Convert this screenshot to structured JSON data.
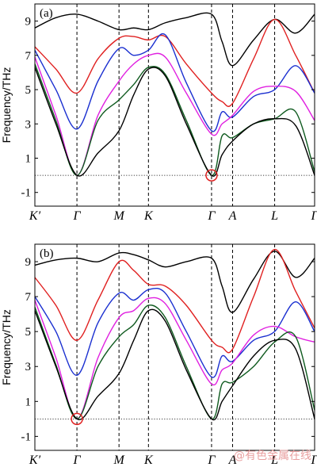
{
  "watermark": "@有色金属在线",
  "chart_data": [
    {
      "type": "line",
      "panel_label": "(a)",
      "ylabel": "Frequency/THz",
      "ylim": [
        -1.8,
        10
      ],
      "yticks": [
        -1,
        1,
        3,
        5,
        7,
        9
      ],
      "k_points": [
        {
          "label": "K′",
          "pos": 0
        },
        {
          "label": "Γ",
          "pos": 1
        },
        {
          "label": "M",
          "pos": 2
        },
        {
          "label": "K",
          "pos": 2.7
        },
        {
          "label": "Γ",
          "pos": 4.2
        },
        {
          "label": "A",
          "pos": 4.7
        },
        {
          "label": "L",
          "pos": 5.7
        },
        {
          "label": "Γ",
          "pos": 6.65
        }
      ],
      "zero_line": true,
      "highlight": {
        "k_index": 4,
        "frequency": 0,
        "color": "#e02020"
      },
      "series": [
        {
          "color": "#000000",
          "points": [
            [
              0,
              8.6
            ],
            [
              0.5,
              9.2
            ],
            [
              1,
              9.4
            ],
            [
              1.5,
              9.0
            ],
            [
              2,
              8.5
            ],
            [
              2.35,
              8.6
            ],
            [
              2.7,
              8.5
            ],
            [
              3.1,
              8.9
            ],
            [
              3.6,
              9.2
            ],
            [
              4.2,
              9.4
            ],
            [
              4.45,
              7.8
            ],
            [
              4.7,
              6.4
            ],
            [
              5.2,
              7.9
            ],
            [
              5.7,
              9.1
            ],
            [
              6.2,
              8.3
            ],
            [
              6.65,
              9.4
            ]
          ]
        },
        {
          "color": "#e02020",
          "points": [
            [
              0,
              7.5
            ],
            [
              0.5,
              6.2
            ],
            [
              1,
              4.8
            ],
            [
              1.5,
              6.8
            ],
            [
              2,
              8.0
            ],
            [
              2.35,
              8.1
            ],
            [
              2.7,
              7.9
            ],
            [
              3.1,
              8.1
            ],
            [
              3.6,
              6.5
            ],
            [
              4.2,
              4.8
            ],
            [
              4.45,
              4.3
            ],
            [
              4.7,
              4.2
            ],
            [
              5.2,
              6.8
            ],
            [
              5.7,
              9.1
            ],
            [
              6.2,
              7.0
            ],
            [
              6.65,
              4.8
            ]
          ]
        },
        {
          "color": "#1a2fd0",
          "points": [
            [
              0,
              7.3
            ],
            [
              0.5,
              5.0
            ],
            [
              1,
              2.7
            ],
            [
              1.5,
              5.5
            ],
            [
              2,
              7.4
            ],
            [
              2.35,
              7.0
            ],
            [
              2.7,
              7.3
            ],
            [
              3.1,
              8.2
            ],
            [
              3.6,
              5.4
            ],
            [
              4.2,
              2.6
            ],
            [
              4.45,
              3.7
            ],
            [
              4.7,
              3.4
            ],
            [
              5.2,
              4.6
            ],
            [
              5.7,
              5.0
            ],
            [
              6.2,
              6.4
            ],
            [
              6.65,
              4.8
            ]
          ]
        },
        {
          "color": "#e020e0",
          "points": [
            [
              0,
              6.9
            ],
            [
              0.5,
              3.5
            ],
            [
              1,
              0
            ],
            [
              1.5,
              3.5
            ],
            [
              2,
              5.5
            ],
            [
              2.35,
              6.5
            ],
            [
              2.7,
              7.0
            ],
            [
              3.1,
              6.9
            ],
            [
              3.6,
              4.8
            ],
            [
              4.2,
              2.4
            ],
            [
              4.45,
              3.0
            ],
            [
              4.7,
              3.5
            ],
            [
              5.2,
              4.9
            ],
            [
              5.7,
              5.2
            ],
            [
              6.2,
              4.9
            ],
            [
              6.65,
              3.2
            ]
          ]
        },
        {
          "color": "#0e5a1e",
          "points": [
            [
              0,
              6.5
            ],
            [
              0.5,
              3.2
            ],
            [
              1,
              0
            ],
            [
              1.5,
              3.2
            ],
            [
              2,
              4.4
            ],
            [
              2.35,
              5.3
            ],
            [
              2.7,
              6.3
            ],
            [
              3.1,
              5.9
            ],
            [
              3.6,
              3.2
            ],
            [
              4.2,
              0
            ],
            [
              4.45,
              2.3
            ],
            [
              4.7,
              2.2
            ],
            [
              5.2,
              3.0
            ],
            [
              5.7,
              3.3
            ],
            [
              6.2,
              3.7
            ],
            [
              6.65,
              0.2
            ]
          ]
        },
        {
          "color": "#000000",
          "points": [
            [
              0,
              6.3
            ],
            [
              0.5,
              3.0
            ],
            [
              1,
              0
            ],
            [
              1.5,
              1.3
            ],
            [
              2,
              2.6
            ],
            [
              2.35,
              4.7
            ],
            [
              2.7,
              6.2
            ],
            [
              3.1,
              5.8
            ],
            [
              3.6,
              3.0
            ],
            [
              4.2,
              0
            ],
            [
              4.45,
              1.2
            ],
            [
              4.7,
              2.0
            ],
            [
              5.2,
              3.0
            ],
            [
              5.7,
              3.3
            ],
            [
              6.2,
              2.9
            ],
            [
              6.65,
              0
            ]
          ]
        }
      ]
    },
    {
      "type": "line",
      "panel_label": "(b)",
      "ylabel": "Frequency/THz",
      "ylim": [
        -1.8,
        10
      ],
      "yticks": [
        -1,
        1,
        3,
        5,
        7,
        9
      ],
      "k_points": [
        {
          "label": "K′",
          "pos": 0
        },
        {
          "label": "Γ",
          "pos": 1
        },
        {
          "label": "M",
          "pos": 2
        },
        {
          "label": "K",
          "pos": 2.7
        },
        {
          "label": "Γ",
          "pos": 4.2
        },
        {
          "label": "A",
          "pos": 4.7
        },
        {
          "label": "L",
          "pos": 5.7
        },
        {
          "label": "Γ",
          "pos": 6.65
        }
      ],
      "zero_line": true,
      "highlight": {
        "k_index": 1,
        "frequency": 0,
        "color": "#e02020"
      },
      "series": [
        {
          "color": "#000000",
          "points": [
            [
              0,
              8.8
            ],
            [
              0.5,
              9.1
            ],
            [
              1,
              9.2
            ],
            [
              1.5,
              9.0
            ],
            [
              2,
              9.5
            ],
            [
              2.35,
              9.4
            ],
            [
              2.7,
              9.1
            ],
            [
              3.1,
              8.7
            ],
            [
              3.6,
              9.0
            ],
            [
              4.2,
              9.2
            ],
            [
              4.45,
              7.6
            ],
            [
              4.7,
              6.1
            ],
            [
              5.2,
              8.0
            ],
            [
              5.7,
              9.6
            ],
            [
              6.2,
              8.1
            ],
            [
              6.65,
              9.2
            ]
          ]
        },
        {
          "color": "#e02020",
          "points": [
            [
              0,
              8.1
            ],
            [
              0.5,
              6.5
            ],
            [
              1,
              4.5
            ],
            [
              1.5,
              6.8
            ],
            [
              2,
              9.0
            ],
            [
              2.35,
              8.5
            ],
            [
              2.7,
              7.7
            ],
            [
              3.1,
              7.6
            ],
            [
              3.6,
              6.5
            ],
            [
              4.2,
              4.5
            ],
            [
              4.45,
              4.1
            ],
            [
              4.7,
              4.0
            ],
            [
              5.2,
              7.0
            ],
            [
              5.7,
              9.7
            ],
            [
              6.2,
              7.3
            ],
            [
              6.65,
              5.2
            ]
          ]
        },
        {
          "color": "#1a2fd0",
          "points": [
            [
              0,
              7.0
            ],
            [
              0.5,
              5.0
            ],
            [
              1,
              2.5
            ],
            [
              1.5,
              5.5
            ],
            [
              2,
              7.2
            ],
            [
              2.35,
              6.8
            ],
            [
              2.7,
              7.4
            ],
            [
              3.1,
              7.2
            ],
            [
              3.6,
              5.0
            ],
            [
              4.2,
              2.4
            ],
            [
              4.45,
              3.6
            ],
            [
              4.7,
              3.3
            ],
            [
              5.2,
              4.5
            ],
            [
              5.7,
              5.0
            ],
            [
              6.2,
              6.7
            ],
            [
              6.65,
              5.0
            ]
          ]
        },
        {
          "color": "#e020e0",
          "points": [
            [
              0,
              6.8
            ],
            [
              0.5,
              3.5
            ],
            [
              1,
              0
            ],
            [
              1.5,
              3.5
            ],
            [
              2,
              5.8
            ],
            [
              2.35,
              6.2
            ],
            [
              2.7,
              6.9
            ],
            [
              3.1,
              6.6
            ],
            [
              3.6,
              4.5
            ],
            [
              4.2,
              2.0
            ],
            [
              4.45,
              2.8
            ],
            [
              4.7,
              3.2
            ],
            [
              5.2,
              4.8
            ],
            [
              5.7,
              5.3
            ],
            [
              6.2,
              4.7
            ],
            [
              6.65,
              4.4
            ]
          ]
        },
        {
          "color": "#0e5a1e",
          "points": [
            [
              0,
              6.4
            ],
            [
              0.5,
              3.1
            ],
            [
              1,
              0
            ],
            [
              1.5,
              3.0
            ],
            [
              2,
              4.7
            ],
            [
              2.35,
              5.4
            ],
            [
              2.7,
              6.5
            ],
            [
              3.1,
              5.8
            ],
            [
              3.6,
              3.0
            ],
            [
              4.2,
              0
            ],
            [
              4.45,
              2.0
            ],
            [
              4.7,
              2.1
            ],
            [
              5.2,
              3.0
            ],
            [
              5.7,
              4.4
            ],
            [
              6.2,
              4.7
            ],
            [
              6.65,
              0.5
            ]
          ]
        },
        {
          "color": "#000000",
          "points": [
            [
              0,
              6.2
            ],
            [
              0.5,
              3.0
            ],
            [
              1,
              0
            ],
            [
              1.5,
              1.3
            ],
            [
              2,
              2.6
            ],
            [
              2.35,
              4.5
            ],
            [
              2.7,
              6.2
            ],
            [
              3.1,
              5.6
            ],
            [
              3.6,
              2.8
            ],
            [
              4.2,
              0
            ],
            [
              4.45,
              1.0
            ],
            [
              4.7,
              1.9
            ],
            [
              5.2,
              3.6
            ],
            [
              5.7,
              4.5
            ],
            [
              6.2,
              4.0
            ],
            [
              6.65,
              0
            ]
          ]
        }
      ]
    }
  ]
}
